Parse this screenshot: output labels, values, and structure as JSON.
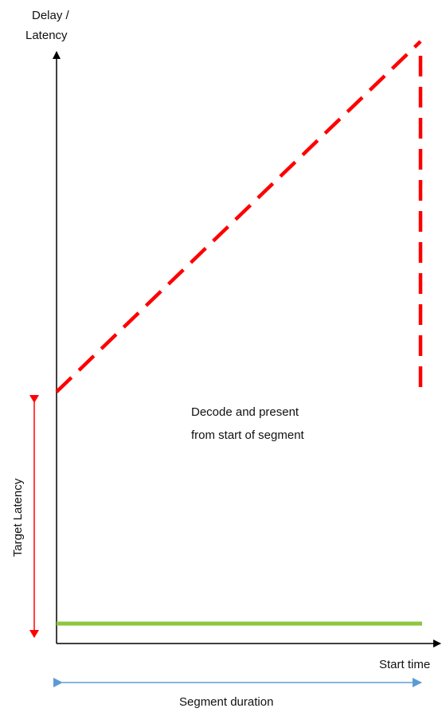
{
  "axes": {
    "y_label_line1": "Delay /",
    "y_label_line2": "Latency",
    "x_label": "Start time"
  },
  "annotations": {
    "target_latency": "Target Latency",
    "segment_duration": "Segment duration",
    "curve_description_line1": "Decode and present",
    "curve_description_line2": "from start of segment"
  },
  "colors": {
    "axis": "#000000",
    "latency_curve": "#ff0000",
    "target_latency_arrow": "#ff0000",
    "baseline": "#8dc63f",
    "segment_duration_arrow": "#5b9bd5"
  }
}
